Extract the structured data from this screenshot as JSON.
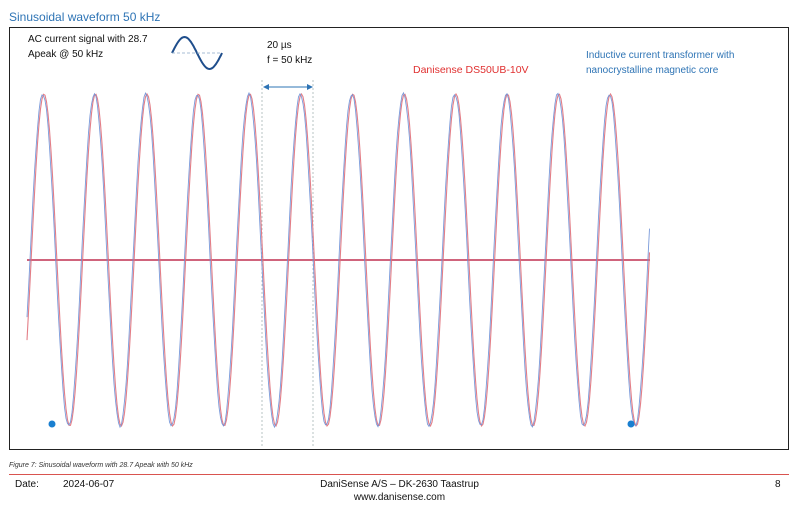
{
  "heading": "Sinusoidal waveform 50 kHz",
  "annotation_signal": "AC current signal with 28.7 Apeak @ 50 kHz",
  "annotation_period": "20 µs",
  "annotation_frequency": "f = 50 kHz",
  "annotation_device": "Danisense DS50UB-10V",
  "annotation_transformer": "Inductive current transformer with nanocrystalline magnetic core",
  "caption": "Figure 7: Sinusoidal waveform with 28.7 Apeak with 50 kHz",
  "footer": {
    "date_label": "Date:",
    "date": "2024-06-07",
    "company": "DaniSense A/S – DK-2630 Taastrup",
    "url": "www.danisense.com",
    "page": "8"
  },
  "colors": {
    "heading_blue": "#2e74b5",
    "trace_red": "#e0707a",
    "trace_blue": "#6b8fd6",
    "device_red": "#e03030",
    "footer_rule": "#d9534f"
  },
  "chart_data": {
    "type": "line",
    "frequency_khz": 50,
    "period_us": 20,
    "amplitude_apeak": 28.7,
    "cycles_shown": 12,
    "series": [
      {
        "color": "#e0707a",
        "waveform": "sine",
        "amplitude": 28.7,
        "frequency_khz": 50
      },
      {
        "color": "#6b8fd6",
        "waveform": "sine",
        "amplitude": 28.7,
        "frequency_khz": 50
      }
    ],
    "grid": false
  }
}
